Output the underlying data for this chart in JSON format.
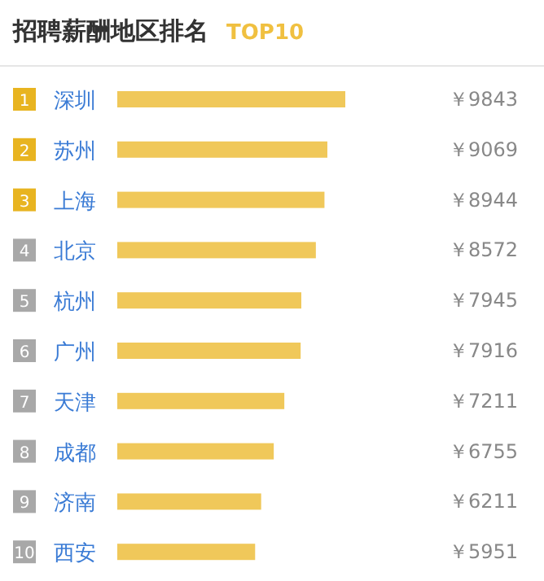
{
  "chart_data": {
    "type": "bar",
    "orientation": "horizontal",
    "title": "招聘薪酬地区排名",
    "subtitle": "TOP10",
    "categories": [
      "深圳",
      "苏州",
      "上海",
      "北京",
      "杭州",
      "广州",
      "天津",
      "成都",
      "济南",
      "西安"
    ],
    "values": [
      9843,
      9069,
      8944,
      8572,
      7945,
      7916,
      7211,
      6755,
      6211,
      5951
    ],
    "color": "#f0c85a",
    "value_labels": [
      "￥9843",
      "￥9069",
      "￥8944",
      "￥8572",
      "￥7945",
      "￥7916",
      "￥7211",
      "￥6755",
      "￥6211",
      "￥5951"
    ],
    "annotations": [
      "1",
      "2",
      "3",
      "4",
      "5",
      "6",
      "7",
      "8",
      "9",
      "10"
    ]
  }
}
